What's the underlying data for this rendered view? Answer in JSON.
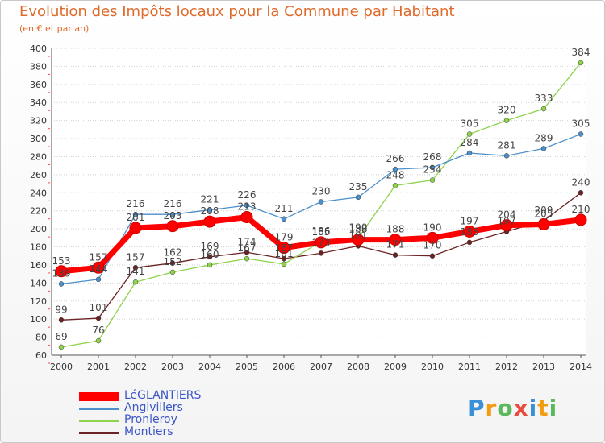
{
  "chart_data": {
    "type": "line",
    "title": "Evolution des Impôts locaux pour la Commune par Habitant",
    "subtitle": "(en € et par an)",
    "xlabel": "",
    "ylabel": "",
    "x": [
      "2000",
      "2001",
      "2002",
      "2003",
      "2004",
      "2005",
      "2006",
      "2007",
      "2008",
      "2009",
      "2010",
      "2011",
      "2012",
      "2013",
      "2014"
    ],
    "ylim": [
      60,
      400
    ],
    "yticks": [
      "60",
      "80",
      "100",
      "120",
      "140",
      "160",
      "180",
      "200",
      "220",
      "240",
      "260",
      "280",
      "300",
      "320",
      "340",
      "360",
      "380",
      "400"
    ],
    "grid": "horizontal dotted",
    "legend_position": "bottom-left",
    "series": [
      {
        "name": "LéGLANTIERS",
        "color": "#ff0000",
        "values": [
          153,
          157,
          201,
          203,
          208,
          213,
          179,
          185,
          188,
          188,
          190,
          197,
          204,
          205,
          210
        ]
      },
      {
        "name": "Angivillers",
        "color": "#4d8fcb",
        "values": [
          139,
          144,
          216,
          216,
          221,
          226,
          211,
          230,
          235,
          266,
          268,
          284,
          281,
          289,
          305
        ]
      },
      {
        "name": "Pronleroy",
        "color": "#8ed34b",
        "values": [
          69,
          76,
          141,
          152,
          160,
          167,
          161,
          186,
          190,
          248,
          254,
          305,
          320,
          333,
          384
        ]
      },
      {
        "name": "Montiers",
        "color": "#6b2324",
        "values": [
          99,
          101,
          157,
          162,
          169,
          174,
          167,
          173,
          181,
          171,
          170,
          185,
          197,
          209,
          240
        ]
      }
    ]
  },
  "logo": {
    "letters": [
      "P",
      "r",
      "o",
      "x",
      "i",
      "t",
      "i"
    ],
    "colors": [
      "#3a8fd9",
      "#f39c12",
      "#5cb85c",
      "#e74c3c",
      "#3a8fd9",
      "#f39c12",
      "#5cb85c"
    ]
  }
}
